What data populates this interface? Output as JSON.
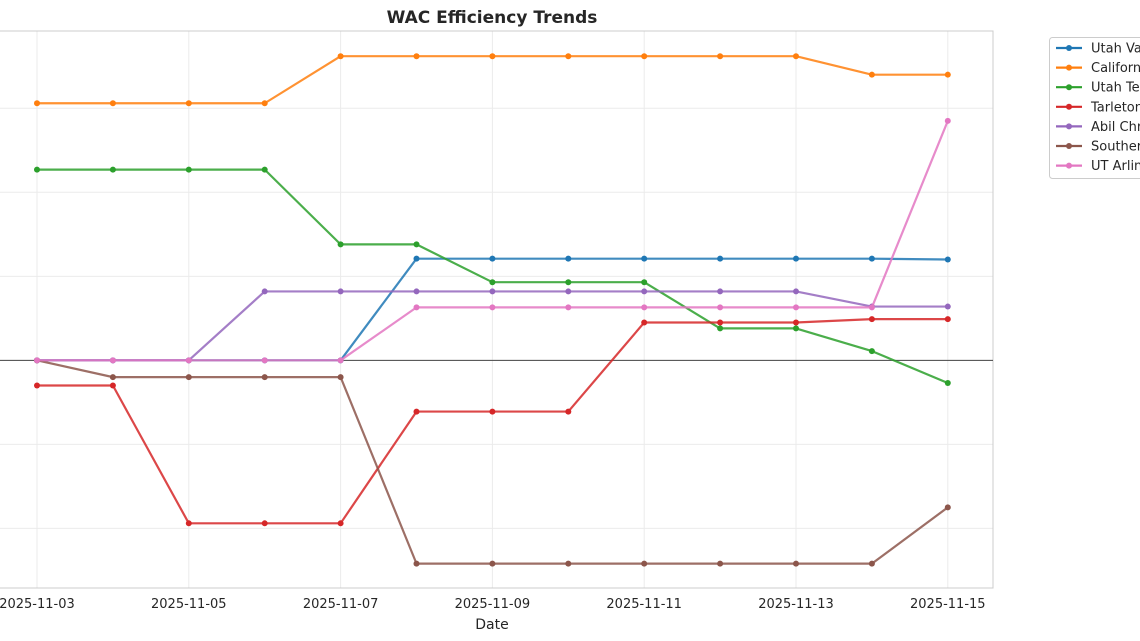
{
  "chart_data": {
    "type": "line",
    "title": "WAC Efficiency Trends",
    "xlabel": "Date",
    "ylabel": "",
    "x": [
      "2025-11-03",
      "2025-11-04",
      "2025-11-05",
      "2025-11-06",
      "2025-11-07",
      "2025-11-08",
      "2025-11-09",
      "2025-11-10",
      "2025-11-11",
      "2025-11-12",
      "2025-11-13",
      "2025-11-14",
      "2025-11-15"
    ],
    "xticks": [
      "2025-11-03",
      "2025-11-05",
      "2025-11-07",
      "2025-11-09",
      "2025-11-11",
      "2025-11-13",
      "2025-11-15"
    ],
    "ylim": [
      -2.71,
      3.92
    ],
    "y_gridlines": [
      -2,
      -1,
      0,
      1,
      2,
      3
    ],
    "zero_line": true,
    "grid": true,
    "legend_placement": "outside-right",
    "series": [
      {
        "name": "Utah Va",
        "color": "#1f77b4",
        "values": [
          0,
          0,
          0,
          0,
          0,
          1.21,
          1.21,
          1.21,
          1.21,
          1.21,
          1.21,
          1.21,
          1.2
        ]
      },
      {
        "name": "Californ",
        "color": "#ff7f0e",
        "values": [
          3.06,
          3.06,
          3.06,
          3.06,
          3.62,
          3.62,
          3.62,
          3.62,
          3.62,
          3.62,
          3.62,
          3.4,
          3.4
        ]
      },
      {
        "name": "Utah Te",
        "color": "#2ca02c",
        "values": [
          2.27,
          2.27,
          2.27,
          2.27,
          1.38,
          1.38,
          0.93,
          0.93,
          0.93,
          0.38,
          0.38,
          0.11,
          -0.27
        ]
      },
      {
        "name": "Tarleton",
        "color": "#d62728",
        "values": [
          -0.3,
          -0.3,
          -1.94,
          -1.94,
          -1.94,
          -0.61,
          -0.61,
          -0.61,
          0.45,
          0.45,
          0.45,
          0.49,
          0.49
        ]
      },
      {
        "name": "Abil Chr",
        "color": "#9467bd",
        "values": [
          0,
          0,
          0,
          0.82,
          0.82,
          0.82,
          0.82,
          0.82,
          0.82,
          0.82,
          0.82,
          0.64,
          0.64
        ]
      },
      {
        "name": "Souther",
        "color": "#8c564b",
        "values": [
          0,
          -0.2,
          -0.2,
          -0.2,
          -0.2,
          -2.42,
          -2.42,
          -2.42,
          -2.42,
          -2.42,
          -2.42,
          -2.42,
          -1.75
        ]
      },
      {
        "name": "UT Arlin",
        "color": "#e377c2",
        "values": [
          0,
          0,
          0,
          0,
          0,
          0.63,
          0.63,
          0.63,
          0.63,
          0.63,
          0.63,
          0.63,
          2.85
        ]
      }
    ]
  }
}
